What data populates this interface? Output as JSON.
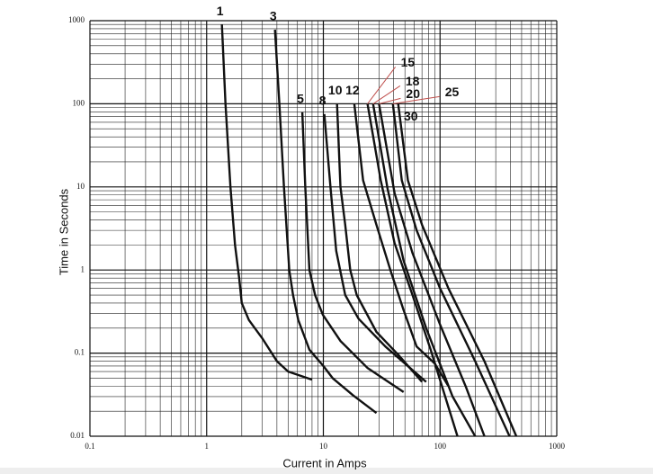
{
  "chart_data": {
    "type": "line",
    "x_label": "Current in Amps",
    "y_label": "Time in Seconds",
    "x_log": true,
    "y_log": true,
    "grid": true,
    "minor_grid": true,
    "xlim": [
      0.1,
      1000
    ],
    "xticks": [
      0.1,
      1,
      10,
      100,
      1000
    ],
    "ylim": [
      0.01,
      1000
    ],
    "yticks": [
      0.01,
      0.1,
      1,
      10,
      100,
      1000
    ],
    "color": "#111111",
    "leader_color": "#c0504d",
    "series": [
      {
        "name": "1",
        "x": [
          1.35,
          1.45,
          1.6,
          1.75,
          1.9,
          2.0,
          2.3,
          3,
          4,
          5,
          8
        ],
        "values": [
          900,
          100,
          10,
          2,
          0.8,
          0.4,
          0.25,
          0.15,
          0.08,
          0.06,
          0.048
        ]
      },
      {
        "name": "3",
        "x": [
          3.85,
          4.2,
          4.6,
          5.1,
          5.5,
          6.1,
          7.6,
          10,
          12,
          18,
          28.5
        ],
        "values": [
          780,
          100,
          10,
          1,
          0.5,
          0.25,
          0.11,
          0.07,
          0.05,
          0.031,
          0.019
        ]
      },
      {
        "name": "5",
        "x": [
          6.6,
          7,
          7.6,
          8.5,
          9.9,
          14,
          24,
          48.7
        ],
        "values": [
          79,
          10,
          1,
          0.5,
          0.29,
          0.14,
          0.066,
          0.034
        ]
      },
      {
        "name": "8",
        "x": [
          10.2,
          11.5,
          12.9,
          15.4,
          20,
          34,
          76
        ],
        "values": [
          75,
          10,
          1.7,
          0.5,
          0.26,
          0.12,
          0.045
        ]
      },
      {
        "name": "10",
        "x": [
          13.1,
          14,
          15.4,
          17,
          19.3,
          28.5,
          44,
          70
        ],
        "values": [
          100,
          10,
          3.5,
          1,
          0.5,
          0.18,
          0.095,
          0.045
        ]
      },
      {
        "name": "12",
        "x": [
          18.4,
          21.9,
          28.5,
          37.5,
          48.7,
          63,
          90,
          118
        ],
        "values": [
          100,
          12,
          3.5,
          1,
          0.33,
          0.12,
          0.075,
          0.04
        ]
      },
      {
        "name": "15",
        "x": [
          23.9,
          31,
          40.8,
          58,
          83,
          141
        ],
        "values": [
          100,
          12,
          2.1,
          0.5,
          0.11,
          0.01
        ]
      },
      {
        "name": "18",
        "x": [
          26.7,
          35.5,
          48.7,
          76,
          128,
          200
        ],
        "values": [
          100,
          9.5,
          1.3,
          0.2,
          0.03,
          0.01
        ]
      },
      {
        "name": "20",
        "x": [
          30,
          40.8,
          58,
          100,
          167,
          240
        ],
        "values": [
          100,
          8.4,
          1.6,
          0.22,
          0.039,
          0.01
        ]
      },
      {
        "name": "25",
        "x": [
          39.4,
          47,
          63,
          100,
          200,
          394
        ],
        "values": [
          100,
          12,
          3,
          0.6,
          0.08,
          0.01
        ]
      },
      {
        "name": "30",
        "x": [
          43.8,
          53,
          70,
          118,
          240,
          450
        ],
        "values": [
          100,
          12,
          3.5,
          0.6,
          0.08,
          0.01
        ]
      }
    ]
  }
}
